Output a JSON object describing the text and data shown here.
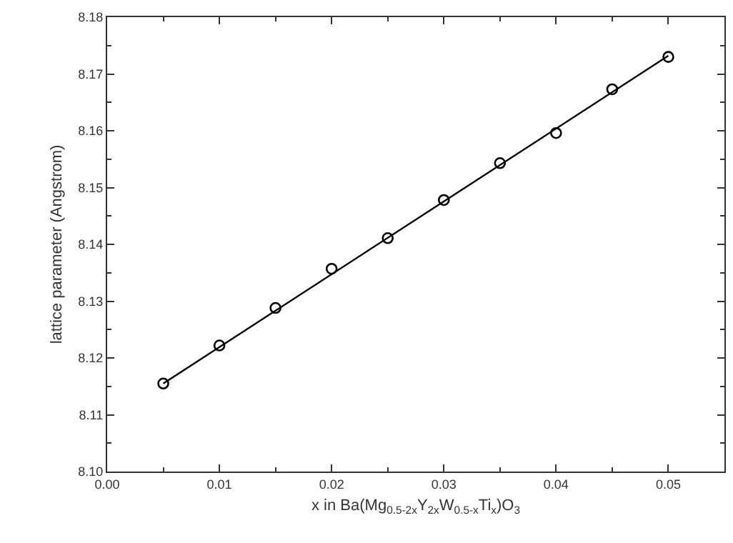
{
  "chart_data": {
    "type": "scatter",
    "xlabel": "x in Ba(Mg$_{0.5-2x}$Y$_{2x}$W$_{0.5-x}$Ti$_{x}$)O$_{3}$",
    "ylabel": "lattice parameter (Angstrom)",
    "x": [
      0.005,
      0.01,
      0.015,
      0.02,
      0.025,
      0.03,
      0.035,
      0.04,
      0.045,
      0.05
    ],
    "series": [
      {
        "color": "#000000",
        "marker": "circle",
        "values": [
          8.1155,
          8.1222,
          8.1288,
          8.1357,
          8.1411,
          8.1478,
          8.1543,
          8.1596,
          8.1673,
          8.173
        ]
      },
      {
        "type": "line",
        "color": "#000000",
        "marker": "none",
        "x": [
          0.005,
          0.05
        ],
        "values": [
          8.1155,
          8.1732
        ]
      }
    ],
    "xlim": [
      0,
      0.055
    ],
    "xticks": [
      {
        "value": 0,
        "label": "0.00"
      },
      0.01,
      0.02,
      0.03,
      0.04,
      0.05
    ],
    "ylim": [
      8.1,
      8.18
    ],
    "yticks": [
      {
        "value": 8.1,
        "label": "8.10"
      },
      8.11,
      8.12,
      8.13,
      8.14,
      8.15,
      8.16,
      8.17,
      {
        "value": 8.18,
        "label": "8.18"
      }
    ]
  }
}
